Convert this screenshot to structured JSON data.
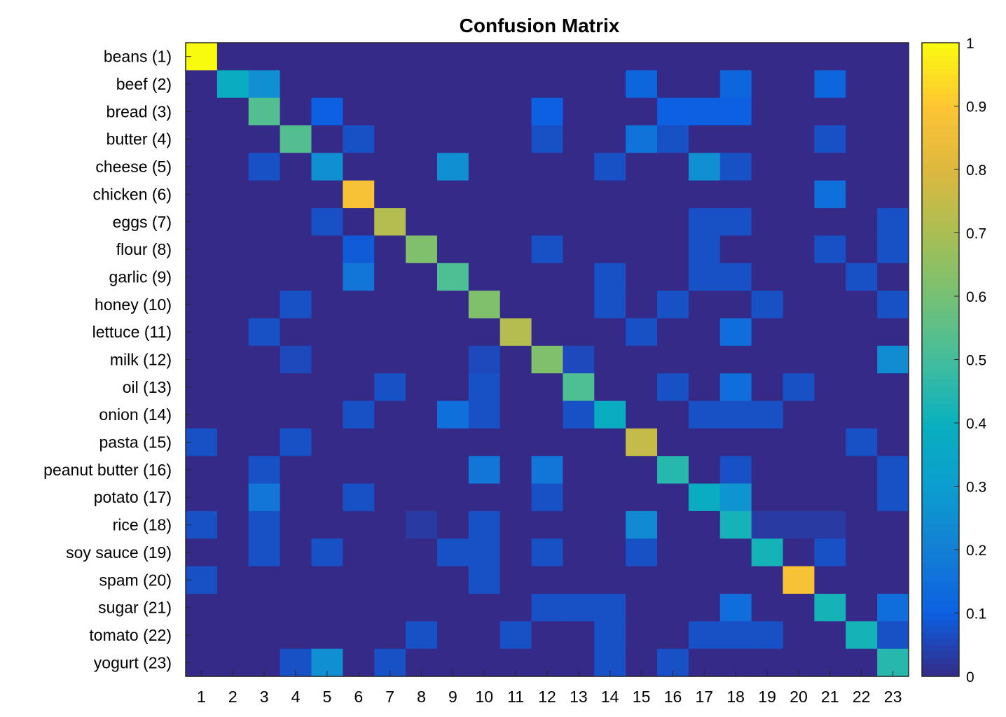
{
  "chart_data": {
    "type": "heatmap",
    "title": "Confusion Matrix",
    "xlabel": "",
    "ylabel": "",
    "x_tick_labels": [
      "1",
      "2",
      "3",
      "4",
      "5",
      "6",
      "7",
      "8",
      "9",
      "10",
      "11",
      "12",
      "13",
      "14",
      "15",
      "16",
      "17",
      "18",
      "19",
      "20",
      "21",
      "22",
      "23"
    ],
    "y_tick_labels": [
      "beans (1)",
      "beef (2)",
      "bread (3)",
      "butter (4)",
      "cheese (5)",
      "chicken (6)",
      "eggs (7)",
      "flour (8)",
      "garlic (9)",
      "honey (10)",
      "lettuce (11)",
      "milk (12)",
      "oil (13)",
      "onion (14)",
      "pasta (15)",
      "peanut butter (16)",
      "potato (17)",
      "rice (18)",
      "soy sauce (19)",
      "spam (20)",
      "sugar (21)",
      "tomato (22)",
      "yogurt (23)"
    ],
    "colormap": "parula",
    "color_range": [
      0,
      1
    ],
    "colorbar_ticks": [
      "0",
      "0.1",
      "0.2",
      "0.3",
      "0.4",
      "0.5",
      "0.6",
      "0.7",
      "0.8",
      "0.9",
      "1"
    ],
    "values": [
      [
        1.0,
        0,
        0,
        0,
        0,
        0,
        0,
        0,
        0,
        0,
        0,
        0,
        0,
        0,
        0,
        0,
        0,
        0,
        0,
        0,
        0,
        0,
        0
      ],
      [
        0,
        0.38,
        0.25,
        0,
        0,
        0,
        0,
        0,
        0,
        0,
        0,
        0,
        0,
        0,
        0.12,
        0,
        0,
        0.12,
        0,
        0,
        0.12,
        0,
        0
      ],
      [
        0,
        0,
        0.53,
        0,
        0.1,
        0,
        0,
        0,
        0,
        0,
        0,
        0.1,
        0,
        0,
        0,
        0.1,
        0.1,
        0.1,
        0,
        0,
        0,
        0,
        0
      ],
      [
        0,
        0,
        0,
        0.53,
        0,
        0.07,
        0,
        0,
        0,
        0,
        0,
        0.07,
        0,
        0,
        0.16,
        0.07,
        0,
        0,
        0,
        0,
        0.07,
        0,
        0
      ],
      [
        0,
        0,
        0.07,
        0,
        0.25,
        0,
        0,
        0,
        0.25,
        0,
        0,
        0,
        0,
        0.07,
        0,
        0,
        0.25,
        0.07,
        0,
        0,
        0,
        0,
        0
      ],
      [
        0,
        0,
        0,
        0,
        0,
        0.88,
        0,
        0,
        0,
        0,
        0,
        0,
        0,
        0,
        0,
        0,
        0,
        0,
        0,
        0,
        0.15,
        0,
        0
      ],
      [
        0,
        0,
        0,
        0,
        0.07,
        0,
        0.72,
        0,
        0,
        0,
        0,
        0,
        0,
        0,
        0,
        0,
        0.07,
        0.07,
        0,
        0,
        0,
        0,
        0.07
      ],
      [
        0,
        0,
        0,
        0,
        0,
        0.09,
        0,
        0.62,
        0,
        0,
        0,
        0.07,
        0,
        0,
        0,
        0,
        0.07,
        0,
        0,
        0,
        0.07,
        0,
        0.07
      ],
      [
        0,
        0,
        0,
        0,
        0,
        0.17,
        0,
        0,
        0.52,
        0,
        0,
        0,
        0,
        0.07,
        0,
        0,
        0.07,
        0.07,
        0,
        0,
        0,
        0.07,
        0
      ],
      [
        0,
        0,
        0,
        0.07,
        0,
        0,
        0,
        0,
        0,
        0.62,
        0,
        0,
        0,
        0.07,
        0,
        0.07,
        0,
        0,
        0.07,
        0,
        0,
        0,
        0.07
      ],
      [
        0,
        0,
        0.07,
        0,
        0,
        0,
        0,
        0,
        0,
        0,
        0.72,
        0,
        0,
        0,
        0.07,
        0,
        0,
        0.14,
        0,
        0,
        0,
        0,
        0
      ],
      [
        0,
        0,
        0,
        0.06,
        0,
        0,
        0,
        0,
        0,
        0.06,
        0,
        0.62,
        0.06,
        0,
        0,
        0,
        0,
        0,
        0,
        0,
        0,
        0,
        0.24
      ],
      [
        0,
        0,
        0,
        0,
        0,
        0,
        0.07,
        0,
        0,
        0.07,
        0,
        0,
        0.52,
        0,
        0,
        0.07,
        0,
        0.14,
        0,
        0.07,
        0,
        0,
        0
      ],
      [
        0,
        0,
        0,
        0,
        0,
        0.07,
        0,
        0,
        0.15,
        0.07,
        0,
        0,
        0.07,
        0.38,
        0,
        0,
        0.07,
        0.07,
        0.07,
        0,
        0,
        0,
        0
      ],
      [
        0.07,
        0,
        0,
        0.07,
        0,
        0,
        0,
        0,
        0,
        0,
        0,
        0,
        0,
        0,
        0.75,
        0,
        0,
        0,
        0,
        0,
        0,
        0.07,
        0
      ],
      [
        0,
        0,
        0.07,
        0,
        0,
        0,
        0,
        0,
        0,
        0.17,
        0,
        0.17,
        0,
        0,
        0,
        0.45,
        0,
        0.07,
        0,
        0,
        0,
        0,
        0.07
      ],
      [
        0,
        0,
        0.17,
        0,
        0,
        0.07,
        0,
        0,
        0,
        0,
        0,
        0.07,
        0,
        0,
        0,
        0,
        0.38,
        0.27,
        0,
        0,
        0,
        0,
        0.07
      ],
      [
        0.07,
        0,
        0.07,
        0,
        0,
        0,
        0,
        0.03,
        0,
        0.07,
        0,
        0,
        0,
        0,
        0.23,
        0,
        0,
        0.42,
        0.03,
        0.03,
        0.03,
        0,
        0
      ],
      [
        0,
        0,
        0.07,
        0,
        0.07,
        0,
        0,
        0,
        0.07,
        0.07,
        0,
        0.07,
        0,
        0,
        0.07,
        0,
        0,
        0,
        0.42,
        0,
        0.07,
        0,
        0
      ],
      [
        0.07,
        0,
        0,
        0,
        0,
        0,
        0,
        0,
        0,
        0.07,
        0,
        0,
        0,
        0,
        0,
        0,
        0,
        0,
        0,
        0.88,
        0,
        0,
        0
      ],
      [
        0,
        0,
        0,
        0,
        0,
        0,
        0,
        0,
        0,
        0,
        0,
        0.07,
        0.07,
        0.07,
        0,
        0,
        0,
        0.14,
        0,
        0,
        0.42,
        0,
        0.14
      ],
      [
        0,
        0,
        0,
        0,
        0,
        0,
        0,
        0.07,
        0,
        0,
        0.07,
        0,
        0,
        0.07,
        0,
        0,
        0.07,
        0.07,
        0.07,
        0,
        0,
        0.42,
        0.07
      ],
      [
        0,
        0,
        0,
        0.07,
        0.25,
        0,
        0.07,
        0,
        0,
        0,
        0,
        0,
        0,
        0.07,
        0,
        0.07,
        0,
        0,
        0,
        0,
        0,
        0,
        0.45
      ]
    ]
  }
}
